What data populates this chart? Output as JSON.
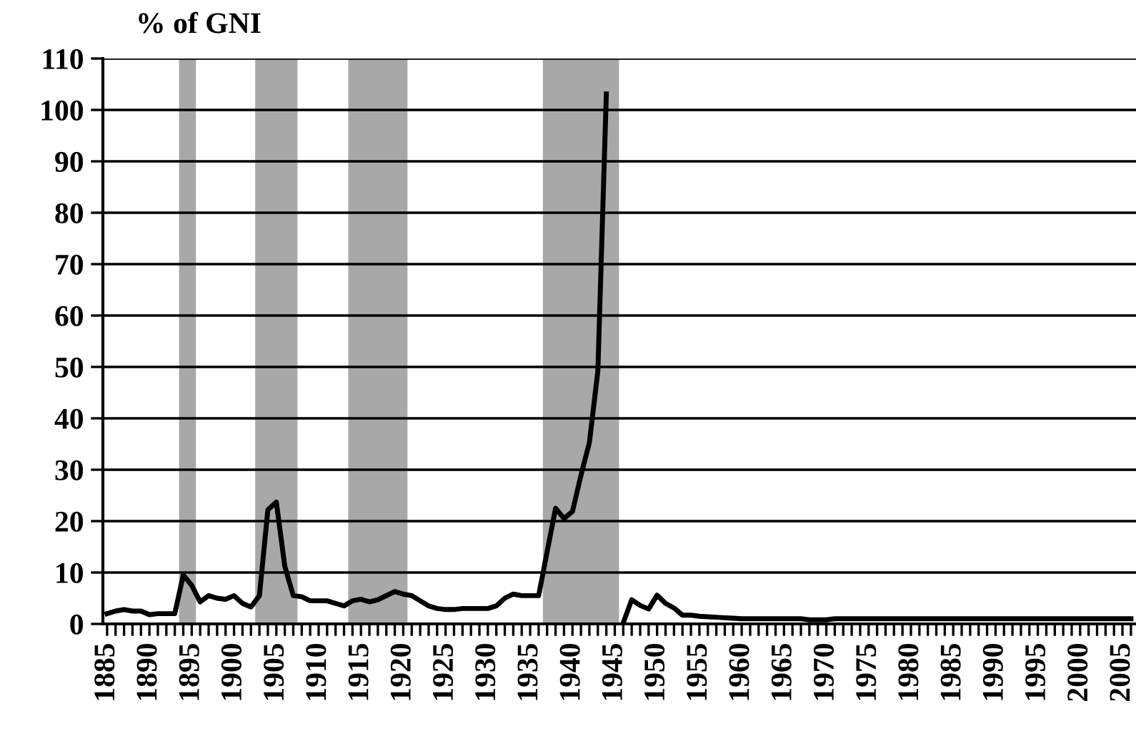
{
  "chart_data": {
    "type": "line",
    "title": "% of GNI",
    "x": [
      1885,
      1886,
      1887,
      1888,
      1889,
      1890,
      1891,
      1892,
      1893,
      1894,
      1895,
      1896,
      1897,
      1898,
      1899,
      1900,
      1901,
      1902,
      1903,
      1904,
      1905,
      1906,
      1907,
      1908,
      1909,
      1910,
      1911,
      1912,
      1913,
      1914,
      1915,
      1916,
      1917,
      1918,
      1919,
      1920,
      1921,
      1922,
      1923,
      1924,
      1925,
      1926,
      1927,
      1928,
      1929,
      1930,
      1931,
      1932,
      1933,
      1934,
      1935,
      1936,
      1937,
      1938,
      1939,
      1940,
      1941,
      1942,
      1943,
      1944,
      1945,
      1946,
      1947,
      1948,
      1949,
      1950,
      1951,
      1952,
      1953,
      1954,
      1955,
      1956,
      1957,
      1958,
      1959,
      1960,
      1961,
      1962,
      1963,
      1964,
      1965,
      1966,
      1967,
      1968,
      1969,
      1970,
      1971,
      1972,
      1973,
      1974,
      1975,
      1976,
      1977,
      1978,
      1979,
      1980,
      1981,
      1982,
      1983,
      1984,
      1985,
      1986,
      1987,
      1988,
      1989,
      1990,
      1991,
      1992,
      1993,
      1994,
      1995,
      1996,
      1997,
      1998,
      1999,
      2000,
      2001,
      2002,
      2003,
      2004,
      2005,
      2006
    ],
    "series": [
      {
        "color": "#000000",
        "values": [
          2.0,
          2.5,
          2.8,
          2.5,
          2.5,
          1.8,
          2.0,
          2.0,
          2.0,
          9.5,
          7.5,
          4.3,
          5.5,
          5.0,
          4.8,
          5.5,
          4.0,
          3.3,
          5.5,
          22.2,
          23.7,
          11.2,
          5.5,
          5.3,
          4.5,
          4.5,
          4.5,
          4.0,
          3.5,
          4.5,
          4.8,
          4.3,
          4.7,
          5.5,
          6.3,
          5.8,
          5.5,
          4.5,
          3.5,
          3.0,
          2.8,
          2.8,
          3.0,
          3.0,
          3.0,
          3.0,
          3.5,
          5.0,
          5.8,
          5.5,
          5.5,
          5.5,
          14.0,
          22.5,
          20.5,
          21.9,
          28.9,
          35.3,
          49.2,
          103.1,
          null,
          0.2,
          4.7,
          3.6,
          2.9,
          5.6,
          4.0,
          3.1,
          1.7,
          1.7,
          1.5,
          1.4,
          1.3,
          1.2,
          1.1,
          1.0,
          1.0,
          1.0,
          1.0,
          1.0,
          1.0,
          1.0,
          1.0,
          0.8,
          0.8,
          0.8,
          1.0,
          1.0,
          1.0,
          1.0,
          1.0,
          1.0,
          1.0,
          1.0,
          1.0,
          1.0,
          1.0,
          1.0,
          1.0,
          1.0,
          1.0,
          1.0,
          1.0,
          1.0,
          1.0,
          1.0,
          1.0,
          1.0,
          1.0,
          1.0,
          1.0,
          1.0,
          1.0,
          1.0,
          1.0,
          1.0,
          1.0,
          1.0,
          1.0,
          1.0,
          1.0,
          1.0
        ]
      }
    ],
    "xlim": [
      1884.5,
      2006.6
    ],
    "ylim": [
      0,
      110
    ],
    "xticks": [
      1885,
      1890,
      1895,
      1900,
      1905,
      1910,
      1915,
      1920,
      1925,
      1930,
      1935,
      1940,
      1945,
      1950,
      1955,
      1960,
      1965,
      1970,
      1975,
      1980,
      1985,
      1990,
      1995,
      2000,
      2005
    ],
    "yticks": [
      0,
      10,
      20,
      30,
      40,
      50,
      60,
      70,
      80,
      90,
      100,
      110
    ],
    "grid": "y",
    "marker": "none",
    "line_style": "solid",
    "bands": [
      {
        "axis": "x",
        "from": 1893.5,
        "to": 1895.5,
        "color": "#a8a8a8"
      },
      {
        "axis": "x",
        "from": 1902.5,
        "to": 1907.5,
        "color": "#a8a8a8"
      },
      {
        "axis": "x",
        "from": 1913.5,
        "to": 1920.5,
        "color": "#a8a8a8"
      },
      {
        "axis": "x",
        "from": 1936.5,
        "to": 1945.5,
        "color": "#a8a8a8"
      }
    ]
  }
}
